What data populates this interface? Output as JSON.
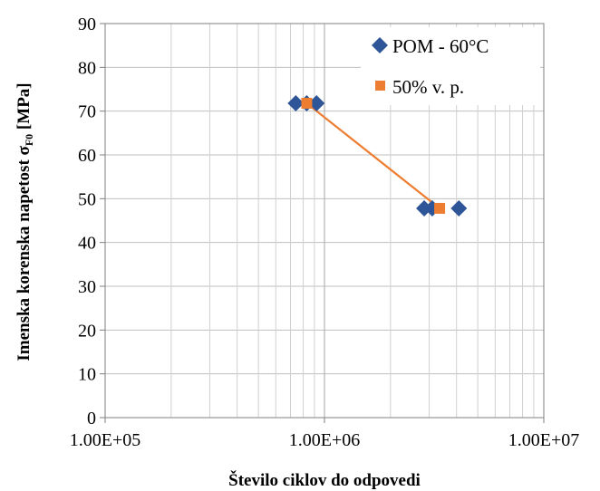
{
  "chart_data": {
    "type": "scatter",
    "title": "",
    "xlabel": "Število ciklov do odpovedi",
    "ylabel_main": "Imenska korenska napetost σ",
    "ylabel_sub": "F0",
    "ylabel_unit": " [MPa]",
    "x_scale": "log",
    "xlim": [
      100000,
      10000000
    ],
    "ylim": [
      0,
      90
    ],
    "y_ticks": [
      0,
      10,
      20,
      30,
      40,
      50,
      60,
      70,
      80,
      90
    ],
    "x_ticks": [
      {
        "value": 100000,
        "label": "1.00E+05"
      },
      {
        "value": 1000000,
        "label": "1.00E+06"
      },
      {
        "value": 10000000,
        "label": "1.00E+07"
      }
    ],
    "grid": true,
    "legend_position": "top-right",
    "series": [
      {
        "name": "POM - 60°C",
        "marker": "diamond",
        "color": "#2E5597",
        "points": [
          {
            "x": 740000,
            "y": 71.8
          },
          {
            "x": 830000,
            "y": 71.8
          },
          {
            "x": 920000,
            "y": 71.8
          },
          {
            "x": 2850000,
            "y": 47.8
          },
          {
            "x": 3100000,
            "y": 47.8
          },
          {
            "x": 4100000,
            "y": 47.8
          }
        ]
      },
      {
        "name": "50% v. p.",
        "marker": "square",
        "color": "#ED7D31",
        "line": true,
        "points": [
          {
            "x": 830000,
            "y": 71.8
          },
          {
            "x": 3350000,
            "y": 47.8
          }
        ]
      }
    ]
  }
}
